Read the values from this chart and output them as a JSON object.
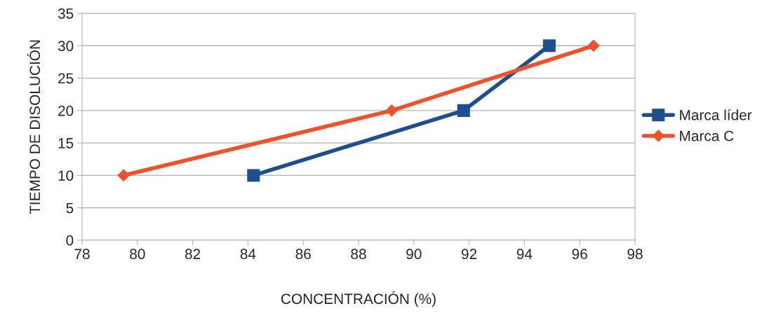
{
  "chart_data": {
    "type": "line",
    "xlabel": "CONCENTRACIÓN (%)",
    "ylabel": "TIEMPO DE DISOLUCIÓN",
    "series": [
      {
        "name": "Marca líder",
        "color": "#1f4e8c",
        "marker": "square",
        "x": [
          84.2,
          91.8,
          94.9
        ],
        "values": [
          10,
          20,
          30
        ]
      },
      {
        "name": "Marca C",
        "color": "#f0502a",
        "marker": "diamond",
        "x": [
          79.5,
          89.2,
          96.5
        ],
        "values": [
          10,
          20,
          30
        ]
      }
    ],
    "xlim": [
      78,
      98
    ],
    "xticks": [
      78,
      80,
      82,
      84,
      86,
      88,
      90,
      92,
      94,
      96,
      98
    ],
    "ylim": [
      0,
      35
    ],
    "yticks": [
      0,
      5,
      10,
      15,
      20,
      25,
      30,
      35
    ],
    "grid": "y",
    "legend": "right",
    "line_style": "solid"
  }
}
